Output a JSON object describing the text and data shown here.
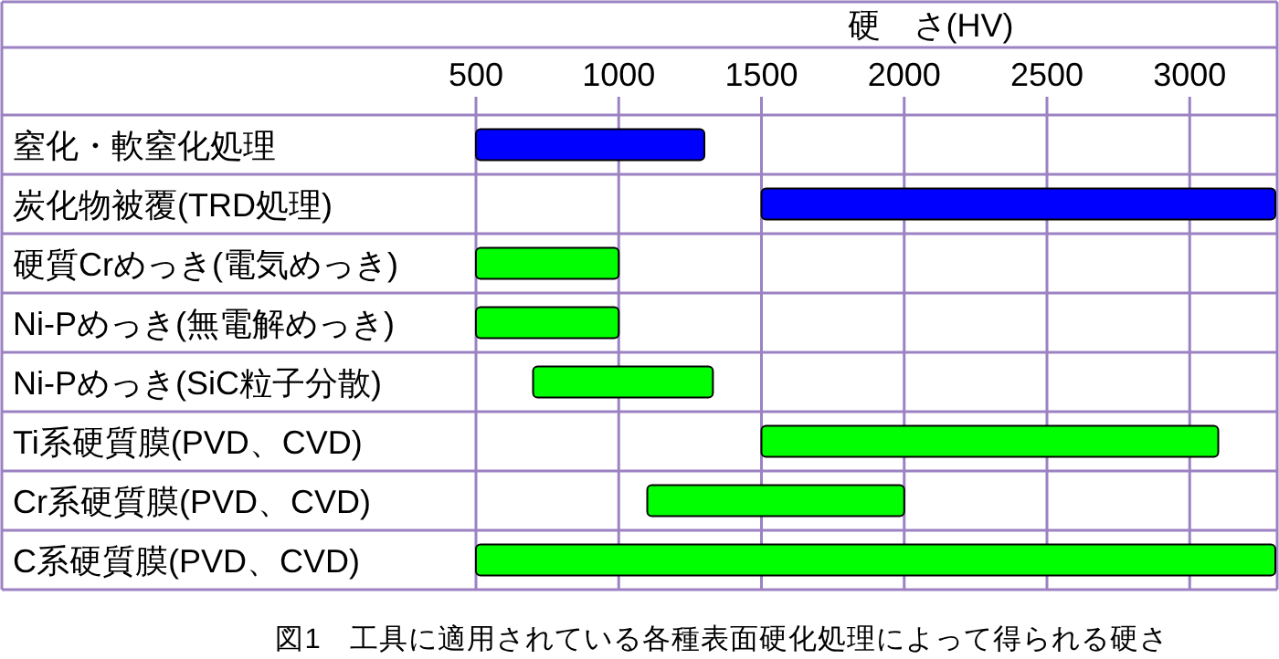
{
  "chart_data": {
    "type": "bar",
    "orientation": "horizontal",
    "xlabel": "硬　さ(HV)",
    "categories": [
      "窒化・軟窒化処理",
      "炭化物被覆(TRD処理)",
      "硬質Crめっき(電気めっき)",
      "Ni-Pめっき(無電解めっき)",
      "Ni-Pめっき(SiC粒子分散)",
      "Ti系硬質膜(PVD、CVD)",
      "Cr系硬質膜(PVD、CVD)",
      "C系硬質膜(PVD、CVD)"
    ],
    "base": [
      500,
      1500,
      500,
      500,
      700,
      1500,
      1100,
      500
    ],
    "values": [
      800,
      1800,
      500,
      500,
      630,
      1600,
      900,
      2800
    ],
    "colors": [
      "#0000ff",
      "#0000ff",
      "#00ff00",
      "#00ff00",
      "#00ff00",
      "#00ff00",
      "#00ff00",
      "#00ff00"
    ],
    "xlim": [
      500,
      3300
    ],
    "xticks": [
      500,
      1000,
      1500,
      2000,
      2500,
      3000
    ],
    "grid": "x",
    "annotations": [
      "図1　工具に適用されている各種表面硬化処理によって得られる硬さ"
    ]
  }
}
